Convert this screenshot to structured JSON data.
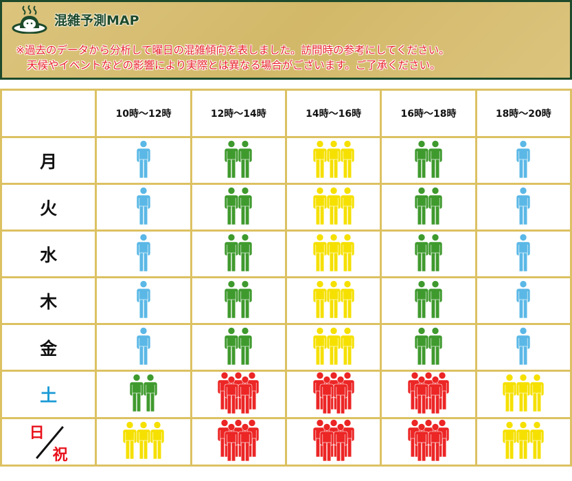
{
  "header": {
    "title": "混雑予測MAP",
    "note_line1": "※過去のデータから分析して曜日の混雑傾向を表しました。訪問時の参考にしてください。",
    "note_line2": "天候やイベントなどの影響により実際とは異なる場合がございます。ご了承ください。"
  },
  "colors": {
    "1": "#5bb8e6",
    "2": "#3f9a2e",
    "3": "#f5e000",
    "5": "#ec2525"
  },
  "time_slots": [
    "10時～12時",
    "12時～14時",
    "14時～16時",
    "16時～18時",
    "18時～20時"
  ],
  "rows": [
    {
      "day": "月",
      "levels": [
        1,
        2,
        3,
        2,
        1
      ]
    },
    {
      "day": "火",
      "levels": [
        1,
        2,
        3,
        2,
        1
      ]
    },
    {
      "day": "水",
      "levels": [
        1,
        2,
        3,
        2,
        1
      ]
    },
    {
      "day": "木",
      "levels": [
        1,
        2,
        3,
        2,
        1
      ]
    },
    {
      "day": "金",
      "levels": [
        1,
        2,
        3,
        2,
        1
      ]
    },
    {
      "day": "土",
      "levels": [
        2,
        5,
        5,
        5,
        3
      ]
    },
    {
      "day": "日",
      "day2": "祝",
      "levels": [
        3,
        5,
        5,
        5,
        3
      ]
    }
  ]
}
